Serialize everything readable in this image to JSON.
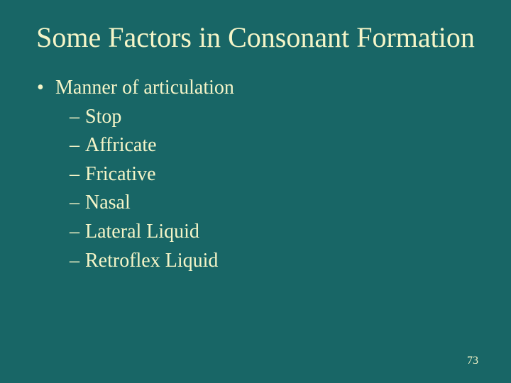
{
  "slide": {
    "background_color": "#186666",
    "text_color": "#f5f5c8",
    "font_family": "Times New Roman",
    "title": "Some Factors in Consonant Formation",
    "title_fontsize": 40,
    "body_fontsize": 28,
    "bullets": {
      "level1": {
        "label": "Manner of articulation",
        "marker": "•"
      },
      "level2_marker": "–",
      "level2": [
        "Stop",
        "Affricate",
        "Fricative",
        "Nasal",
        "Lateral Liquid",
        "Retroflex Liquid"
      ]
    },
    "page_number": "73",
    "page_number_fontsize": 16
  }
}
